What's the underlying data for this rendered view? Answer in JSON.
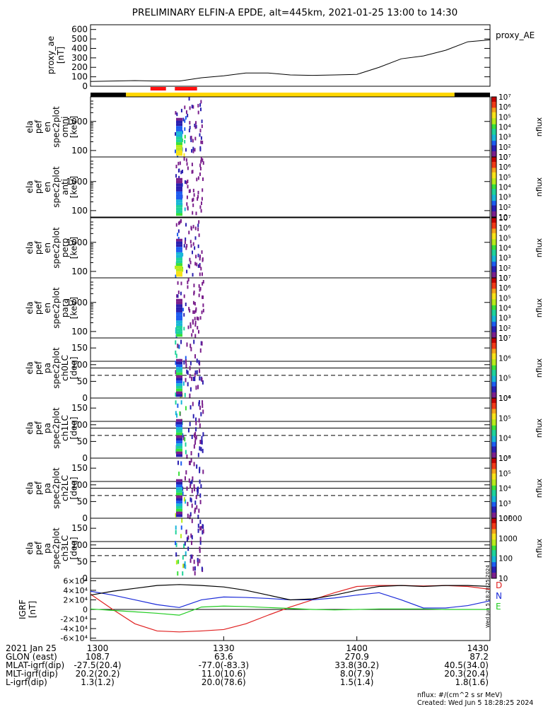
{
  "title": "PRELIMINARY ELFIN-A EPDE, alt=445km, 2021-01-25 13:00 to 14:30",
  "colors": {
    "ae_line": "#000000",
    "igrf_d": "#e02020",
    "igrf_n": "#1a2ad8",
    "igrf_e": "#22cc22",
    "igrf_total": "#000000",
    "status_yellow": "#ffd700",
    "status_red": "#ff1010",
    "status_black": "#000000"
  },
  "ae_panel": {
    "ylabel": [
      "proxy_ae",
      "[nT]"
    ],
    "legend": "proxy_AE",
    "ticks": [
      "0",
      "100",
      "200",
      "300",
      "400",
      "500",
      "600"
    ]
  },
  "status_bar": {
    "segments": [
      {
        "kind": "black",
        "t0": 1300,
        "t1": 1308
      },
      {
        "kind": "yellow",
        "t0": 1308,
        "t1": 1422
      },
      {
        "kind": "black",
        "t0": 1422,
        "t1": 1430
      }
    ],
    "red_marks": [
      [
        1313.5,
        1317
      ],
      [
        1319,
        1324
      ]
    ]
  },
  "spectra": [
    {
      "name": "energy-omni",
      "ylabel": [
        "ela",
        "pef",
        "en",
        "spec2plot",
        "omni",
        "[keV]"
      ],
      "ticks": [
        "100",
        "1000"
      ],
      "cbar_label": "nflux",
      "cbar_ticks": [
        "10",
        "10²",
        "10³",
        "10⁴",
        "10⁵",
        "10⁶",
        "10⁷"
      ]
    },
    {
      "name": "energy-anti",
      "ylabel": [
        "ela",
        "pef",
        "en",
        "spec2plot",
        "anti",
        "[keV]"
      ],
      "ticks": [
        "100",
        "1000"
      ],
      "cbar_label": "nflux",
      "cbar_ticks": [
        "10",
        "10²",
        "10³",
        "10⁴",
        "10⁵",
        "10⁶",
        "10⁷"
      ]
    },
    {
      "name": "energy-perp",
      "ylabel": [
        "ela",
        "pef",
        "en",
        "spec2plot",
        "perp",
        "[keV]"
      ],
      "ticks": [
        "100",
        "1000"
      ],
      "cbar_label": "nflux",
      "cbar_ticks": [
        "10",
        "10²",
        "10³",
        "10⁴",
        "10⁵",
        "10⁶",
        "10⁷"
      ]
    },
    {
      "name": "energy-para",
      "ylabel": [
        "ela",
        "pef",
        "en",
        "spec2plot",
        "para",
        "[keV]"
      ],
      "ticks": [
        "100",
        "1000"
      ],
      "cbar_label": "nflux",
      "cbar_ticks": [
        "10",
        "10²",
        "10³",
        "10⁴",
        "10⁵",
        "10⁶",
        "10⁷"
      ]
    },
    {
      "name": "pa-ch0",
      "ylabel": [
        "ela",
        "pef",
        "pa",
        "spec2plot",
        "ch0LC",
        "[deg]"
      ],
      "ticks": [
        "0",
        "50",
        "100",
        "150"
      ],
      "cbar_label": "nflux",
      "cbar_ticks": [
        "10⁴",
        "10⁵",
        "10⁶",
        "10⁷"
      ]
    },
    {
      "name": "pa-ch1",
      "ylabel": [
        "ela",
        "pef",
        "pa",
        "spec2plot",
        "ch1LC",
        "[deg]"
      ],
      "ticks": [
        "0",
        "50",
        "100",
        "150"
      ],
      "cbar_label": "nflux",
      "cbar_ticks": [
        "10³",
        "10⁴",
        "10⁵",
        "10⁶"
      ]
    },
    {
      "name": "pa-ch2",
      "ylabel": [
        "ela",
        "pef",
        "pa",
        "spec2plot",
        "ch2LC",
        "[deg]"
      ],
      "ticks": [
        "0",
        "50",
        "100",
        "150"
      ],
      "cbar_label": "nflux",
      "cbar_ticks": [
        "10²",
        "10³",
        "10⁴",
        "10⁵",
        "10⁶"
      ]
    },
    {
      "name": "pa-ch3",
      "ylabel": [
        "ela",
        "pef",
        "pa",
        "spec2plot",
        "ch3LC",
        "[deg]"
      ],
      "ticks": [
        "0",
        "50",
        "100",
        "150"
      ],
      "cbar_label": "nflux",
      "cbar_ticks": [
        "10",
        "100",
        "1000",
        "10000"
      ]
    }
  ],
  "igrf_panel": {
    "ylabel": [
      "IGRF",
      "[nT]"
    ],
    "ticks": [
      "-6×10⁴",
      "-4×10⁴",
      "-2×10⁴",
      "0",
      "2×10⁴",
      "4×10⁴",
      "6×10⁴"
    ],
    "legend": [
      "D",
      "N",
      "E"
    ],
    "side_stamp": "Wed Jun  5 18:28:25 2024"
  },
  "ephemeris": {
    "row_labels": [
      "2021 Jan 25",
      "GLON (east)",
      "MLAT-igrf(dip)",
      "MLT-igrf(dip)",
      "L-igrf(dip)"
    ],
    "columns": [
      {
        "time": "1300",
        "values": [
          "108.7",
          "-27.5(20.4)",
          "20.2(20.2)",
          "1.3(1.2)"
        ]
      },
      {
        "time": "1330",
        "values": [
          "63.6",
          "-77.0(-83.3)",
          "11.0(10.6)",
          "20.0(78.6)"
        ]
      },
      {
        "time": "1400",
        "values": [
          "270.9",
          "33.8(30.2)",
          "8.0(7.9)",
          "1.5(1.4)"
        ]
      },
      {
        "time": "1430",
        "values": [
          "87.2",
          "40.5(34.0)",
          "20.3(20.4)",
          "1.8(1.6)"
        ]
      }
    ]
  },
  "footer": {
    "units": "nflux: #/(cm^2 s sr MeV)",
    "created": "Created: Wed Jun  5 18:28:25 2024"
  },
  "chart_data": {
    "type": "line",
    "title": "PRELIMINARY ELFIN-A EPDE, alt=445km, 2021-01-25 13:00 to 14:30",
    "x_range": [
      "13:00",
      "14:30"
    ],
    "xlabel": "",
    "series": [
      {
        "name": "proxy_AE",
        "x": [
          "13:00",
          "13:05",
          "13:10",
          "13:15",
          "13:20",
          "13:25",
          "13:30",
          "13:35",
          "13:40",
          "13:45",
          "13:50",
          "13:55",
          "14:00",
          "14:05",
          "14:10",
          "14:15",
          "14:20",
          "14:25",
          "14:30"
        ],
        "values": [
          50,
          55,
          60,
          55,
          55,
          90,
          110,
          140,
          140,
          120,
          115,
          120,
          125,
          200,
          290,
          320,
          380,
          470,
          490
        ]
      },
      {
        "name": "D",
        "x": [
          "13:00",
          "13:05",
          "13:10",
          "13:15",
          "13:20",
          "13:25",
          "13:30",
          "13:35",
          "13:40",
          "13:45",
          "13:50",
          "13:55",
          "14:00",
          "14:05",
          "14:10",
          "14:15",
          "14:20",
          "14:25",
          "14:30"
        ],
        "values": [
          32000,
          0,
          -30000,
          -45000,
          -47000,
          -45000,
          -42000,
          -30000,
          -12000,
          5000,
          20000,
          35000,
          48000,
          50000,
          50000,
          49000,
          50000,
          48000,
          42000
        ]
      },
      {
        "name": "N",
        "x": [
          "13:00",
          "13:05",
          "13:10",
          "13:15",
          "13:20",
          "13:25",
          "13:30",
          "13:35",
          "13:40",
          "13:45",
          "13:50",
          "13:55",
          "14:00",
          "14:05",
          "14:10",
          "14:15",
          "14:20",
          "14:25",
          "14:30"
        ],
        "values": [
          38000,
          30000,
          20000,
          10000,
          4000,
          20000,
          26000,
          25000,
          23000,
          20000,
          20000,
          24000,
          30000,
          35000,
          20000,
          3000,
          3000,
          8000,
          18000
        ]
      },
      {
        "name": "E",
        "x": [
          "13:00",
          "13:05",
          "13:10",
          "13:15",
          "13:20",
          "13:25",
          "13:30",
          "13:35",
          "13:40",
          "13:45",
          "13:50",
          "13:55",
          "14:00",
          "14:05",
          "14:10",
          "14:15",
          "14:20",
          "14:25",
          "14:30"
        ],
        "values": [
          1000,
          -2000,
          -5000,
          -8000,
          -12000,
          5000,
          7000,
          6000,
          4000,
          2000,
          0,
          -1000,
          0,
          1000,
          1000,
          1000,
          0,
          0,
          0
        ]
      },
      {
        "name": "",
        "x": [
          "13:00",
          "13:05",
          "13:10",
          "13:15",
          "13:20",
          "13:25",
          "13:30",
          "13:35",
          "13:40",
          "13:45",
          "13:50",
          "13:55",
          "14:00",
          "14:05",
          "14:10",
          "14:15",
          "14:20",
          "14:25",
          "14:30"
        ],
        "values": [
          30000,
          38000,
          44000,
          50000,
          52000,
          50000,
          47000,
          40000,
          30000,
          20000,
          22000,
          30000,
          40000,
          48000,
          50000,
          48000,
          50000,
          50000,
          48000
        ]
      }
    ],
    "ae_ylim": [
      0,
      650
    ],
    "igrf_ylim": [
      -65000,
      65000
    ],
    "energy_ylim_keV": [
      60,
      7000
    ],
    "pa_ylim_deg": [
      0,
      180
    ],
    "pa_reference_lines_deg": [
      68,
      90,
      110
    ],
    "grid": false,
    "legend_position": "right"
  }
}
